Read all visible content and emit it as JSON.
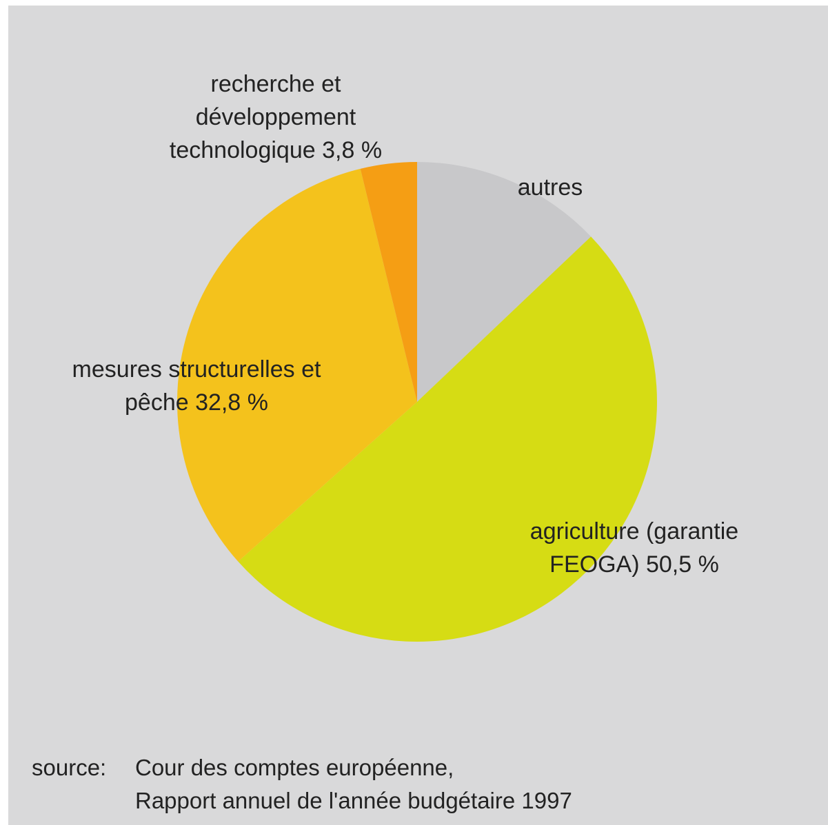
{
  "chart_data": {
    "type": "pie",
    "categories": [
      "autres",
      "agriculture (garantie FEOGA)",
      "mesures structurelles et pêche",
      "recherche et développement technologique"
    ],
    "values": [
      12.9,
      50.5,
      32.8,
      3.8
    ],
    "value_labels": [
      null,
      "50,5 %",
      "32,8 %",
      "3,8 %"
    ],
    "colors": [
      "#c8c8ca",
      "#d6dc14",
      "#f4c21c",
      "#f59e14"
    ],
    "source_label": "source:",
    "source_lines": [
      "Cour des comptes européenne,",
      "Rapport annuel de l'année budgétaire 1997"
    ]
  }
}
